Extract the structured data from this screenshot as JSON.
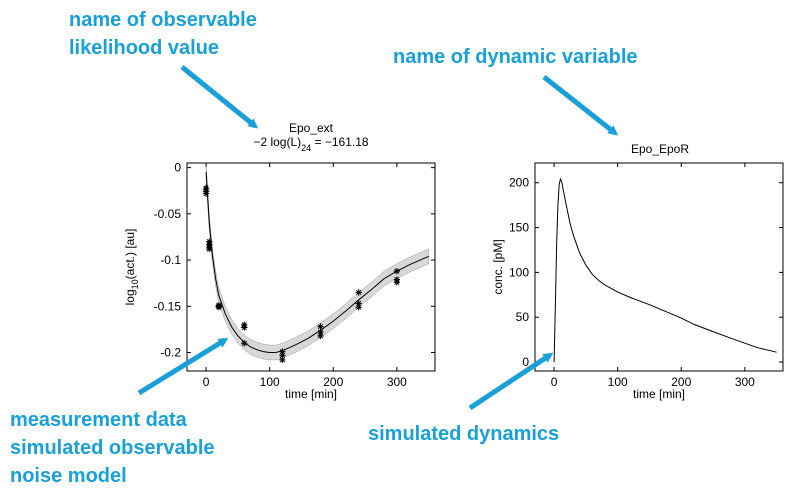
{
  "annotations": {
    "top_left": [
      "name of observable",
      "likelihood value"
    ],
    "top_right": "name of dynamic variable",
    "bottom_left": [
      "measurement data",
      "simulated observable",
      "noise model"
    ],
    "bottom_right": "simulated dynamics",
    "arrow_color": "#1aa0d8"
  },
  "chart_data": [
    {
      "type": "line",
      "title": "Epo_ext",
      "subtitle": {
        "prefix": "−2 log(L)",
        "sub": "24",
        "suffix": " = −161.18"
      },
      "xlabel": "time [min]",
      "ylabel": {
        "prefix": "log",
        "sub": "10",
        "suffix": "(act.) [au]"
      },
      "xlim": [
        -30,
        360
      ],
      "ylim": [
        -0.22,
        0.005
      ],
      "xticks": [
        0,
        100,
        200,
        300
      ],
      "yticks": [
        0,
        -0.05,
        -0.1,
        -0.15,
        -0.2
      ],
      "ytick_labels": [
        "0",
        "-0.05",
        "-0.1",
        "-0.15",
        "-0.2"
      ],
      "series": [
        {
          "role": "simulated observable",
          "x": [
            0,
            5,
            10,
            15,
            20,
            30,
            40,
            50,
            60,
            70,
            80,
            90,
            100,
            110,
            120,
            140,
            160,
            180,
            200,
            220,
            240,
            260,
            280,
            300,
            320,
            340,
            350
          ],
          "y": [
            -0.005,
            -0.06,
            -0.095,
            -0.12,
            -0.138,
            -0.158,
            -0.172,
            -0.182,
            -0.189,
            -0.194,
            -0.197,
            -0.199,
            -0.2,
            -0.2,
            -0.198,
            -0.192,
            -0.185,
            -0.176,
            -0.166,
            -0.155,
            -0.143,
            -0.132,
            -0.12,
            -0.112,
            -0.105,
            -0.099,
            -0.096
          ],
          "color": "#000000"
        },
        {
          "role": "noise model",
          "x": [
            0,
            5,
            10,
            15,
            20,
            30,
            40,
            50,
            60,
            70,
            80,
            90,
            100,
            110,
            120,
            140,
            160,
            180,
            200,
            220,
            240,
            260,
            280,
            300,
            320,
            340,
            350
          ],
          "y_lower": [
            -0.015,
            -0.068,
            -0.103,
            -0.128,
            -0.146,
            -0.166,
            -0.18,
            -0.19,
            -0.197,
            -0.202,
            -0.205,
            -0.207,
            -0.208,
            -0.208,
            -0.206,
            -0.2,
            -0.193,
            -0.184,
            -0.174,
            -0.163,
            -0.151,
            -0.14,
            -0.128,
            -0.12,
            -0.113,
            -0.107,
            -0.104
          ],
          "y_upper": [
            0.005,
            -0.052,
            -0.087,
            -0.112,
            -0.13,
            -0.15,
            -0.164,
            -0.174,
            -0.181,
            -0.186,
            -0.189,
            -0.191,
            -0.192,
            -0.192,
            -0.19,
            -0.184,
            -0.177,
            -0.168,
            -0.158,
            -0.147,
            -0.135,
            -0.124,
            -0.112,
            -0.104,
            -0.097,
            -0.091,
            -0.088
          ],
          "color": "#d8d8d8"
        },
        {
          "role": "measurement data",
          "marker": "*",
          "x": [
            0,
            0,
            0,
            0,
            5,
            5,
            5,
            5,
            20,
            20,
            20,
            60,
            60,
            60,
            120,
            120,
            120,
            180,
            180,
            180,
            240,
            240,
            240,
            300,
            300,
            300
          ],
          "y": [
            -0.022,
            -0.024,
            -0.026,
            -0.028,
            -0.08,
            -0.083,
            -0.086,
            -0.088,
            -0.149,
            -0.15,
            -0.151,
            -0.17,
            -0.173,
            -0.19,
            -0.199,
            -0.203,
            -0.208,
            -0.172,
            -0.178,
            -0.182,
            -0.135,
            -0.147,
            -0.151,
            -0.112,
            -0.121,
            -0.124
          ],
          "color": "#000000"
        }
      ]
    },
    {
      "type": "line",
      "title": "Epo_EpoR",
      "xlabel": "time [min]",
      "ylabel": "conc. [pM]",
      "xlim": [
        -30,
        360
      ],
      "ylim": [
        -10,
        222
      ],
      "xticks": [
        0,
        100,
        200,
        300
      ],
      "yticks": [
        0,
        50,
        100,
        150,
        200
      ],
      "series": [
        {
          "role": "simulated dynamics",
          "x": [
            0,
            2,
            4,
            6,
            8,
            10,
            12,
            15,
            20,
            25,
            30,
            40,
            50,
            60,
            70,
            80,
            100,
            120,
            150,
            180,
            200,
            220,
            250,
            280,
            300,
            320,
            350
          ],
          "y": [
            0,
            60,
            130,
            175,
            198,
            204,
            201,
            190,
            172,
            155,
            142,
            122,
            108,
            98,
            91,
            86,
            78,
            72,
            64,
            55,
            49,
            42,
            34,
            26,
            21,
            16,
            11
          ],
          "color": "#000000"
        }
      ]
    }
  ]
}
